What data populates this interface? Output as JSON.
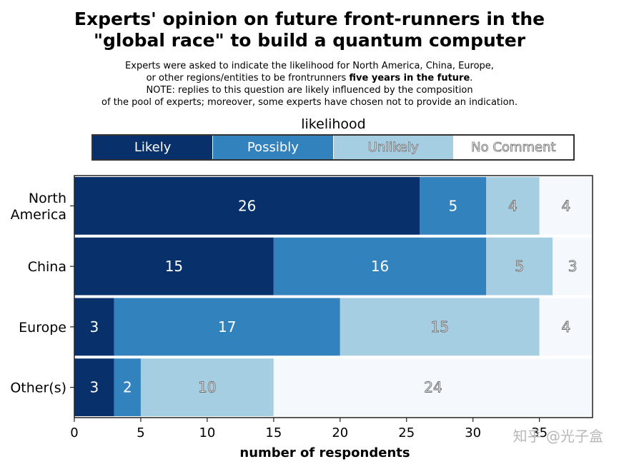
{
  "title_line1": "Experts' opinion on future front-runners in the",
  "title_line2": "\"global race\" to build a quantum computer",
  "subtitle": {
    "line1": "Experts were asked to indicate the likelihood for North America, China, Europe,",
    "line2_prefix": "or other regions/entities to be frontrunners",
    "line2_bold": "five years in the future",
    "line2_suffix": ".",
    "line3": "NOTE: replies to this question are likely influenced by the composition",
    "line4": "of the pool of experts; moreover, some experts have chosen not to provide an indication."
  },
  "watermark": "知乎 @光子盒",
  "colors": {
    "likely": "#08306b",
    "possibly": "#3182bd",
    "unlikely": "#a6cee3",
    "no_comment": "#f5f8fc"
  },
  "chart_data": {
    "type": "bar",
    "orientation": "horizontal",
    "stacked": true,
    "title": "Experts' opinion on future front-runners in the \"global race\" to build a quantum computer",
    "xlabel": "number of respondents",
    "ylabel": "",
    "xlim": [
      0,
      39
    ],
    "x_ticks": [
      0,
      5,
      10,
      15,
      20,
      25,
      30,
      35
    ],
    "legend_title": "likelihood",
    "legend_position": "top",
    "categories": [
      "North America",
      "China",
      "Europe",
      "Other(s)"
    ],
    "category_labels": [
      [
        "North",
        "America"
      ],
      [
        "China"
      ],
      [
        "Europe"
      ],
      [
        "Other(s)"
      ]
    ],
    "series": [
      {
        "name": "Likely",
        "values": [
          26,
          15,
          3,
          3
        ]
      },
      {
        "name": "Possibly",
        "values": [
          5,
          16,
          17,
          2
        ]
      },
      {
        "name": "Unlikely",
        "values": [
          4,
          5,
          15,
          10
        ]
      },
      {
        "name": "No Comment",
        "values": [
          4,
          3,
          4,
          24
        ]
      }
    ]
  }
}
